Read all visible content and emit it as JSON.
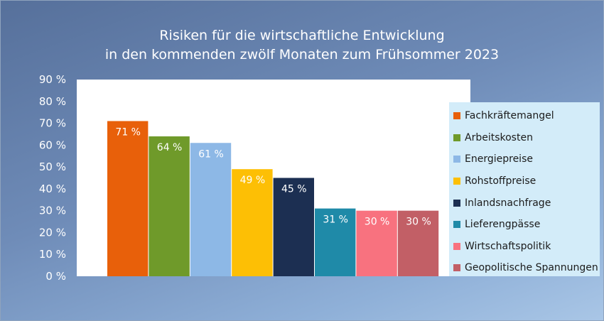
{
  "chart_data": {
    "type": "bar",
    "title_lines": [
      "Risiken für die wirtschaftliche Entwicklung",
      "in den kommenden zwölf Monaten zum Frühsommer 2023"
    ],
    "categories": [
      "Fachkräftemangel",
      "Arbeitskosten",
      "Energiepreise",
      "Rohstoffpreise",
      "Inlandsnachfrage",
      "Lieferengpässe",
      "Wirtschaftspolitik",
      "Geopolitische Spannungen"
    ],
    "values": [
      71,
      64,
      61,
      49,
      45,
      31,
      30,
      30
    ],
    "data_labels": [
      "71 %",
      "64 %",
      "61 %",
      "49 %",
      "45 %",
      "31 %",
      "30 %",
      "30 %"
    ],
    "colors": [
      "#e8600a",
      "#6f9a2a",
      "#8db8e6",
      "#fdbf05",
      "#1c2f52",
      "#1f8aa8",
      "#f8727f",
      "#c25f66"
    ],
    "ylim": [
      0,
      90
    ],
    "y_ticks": [
      "0 %",
      "10 %",
      "20 %",
      "30 %",
      "40 %",
      "50 %",
      "60 %",
      "70 %",
      "80 %",
      "90 %"
    ],
    "xlabel": "",
    "ylabel": "",
    "grid": false,
    "legend_position": "right"
  }
}
